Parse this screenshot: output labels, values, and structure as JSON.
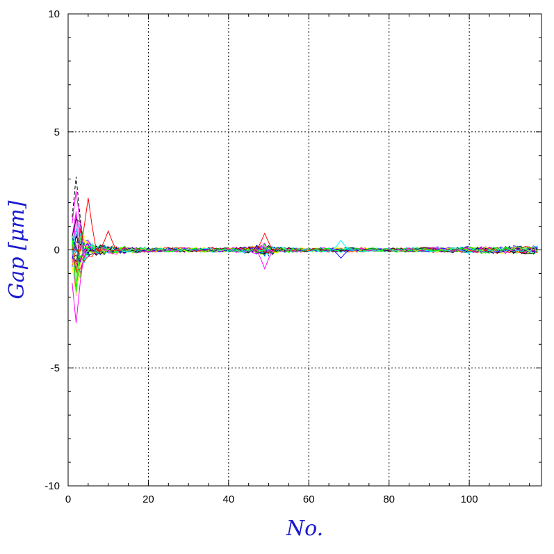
{
  "chart_data": {
    "type": "line",
    "title": "",
    "xlabel": "No.",
    "ylabel": "Gap [μm]",
    "xlim": [
      0,
      118
    ],
    "ylim": [
      -10,
      10
    ],
    "x_ticks": [
      0,
      20,
      40,
      60,
      80,
      100
    ],
    "x_tick_labels": [
      "0",
      "20",
      "40",
      "60",
      "80",
      "100"
    ],
    "y_ticks": [
      -10,
      -5,
      0,
      5,
      10
    ],
    "y_tick_labels": [
      "-10",
      "-5",
      "0",
      "5",
      "10"
    ],
    "grid": true,
    "legend": "none",
    "series_colors": [
      "#ff0000",
      "#ff00ff",
      "#00ffff",
      "#0000ff",
      "#00ff00",
      "#000000",
      "#ffff00"
    ],
    "series_count": 40,
    "x_start": 1,
    "x_end": 117,
    "noise_envelope": {
      "x": [
        1,
        2,
        3,
        4,
        6,
        10,
        20,
        40,
        46,
        49,
        52,
        60,
        68,
        80,
        100,
        117
      ],
      "amplitude": [
        0.9,
        2.2,
        1.4,
        0.8,
        0.35,
        0.22,
        0.12,
        0.12,
        0.18,
        0.35,
        0.15,
        0.1,
        0.12,
        0.1,
        0.16,
        0.2
      ]
    },
    "highlight_excursions": [
      {
        "color": "#000000",
        "x": 2,
        "y": 3.1
      },
      {
        "color": "#ff00ff",
        "x": 2,
        "y": -3.1
      },
      {
        "color": "#ff00ff",
        "x": 2,
        "y": 2.5
      },
      {
        "color": "#ff0000",
        "x": 5,
        "y": 2.2
      },
      {
        "color": "#ff0000",
        "x": 10,
        "y": 0.8
      },
      {
        "color": "#ff00ff",
        "x": 49,
        "y": -0.8
      },
      {
        "color": "#ff0000",
        "x": 49,
        "y": 0.7
      },
      {
        "color": "#0000ff",
        "x": 68,
        "y": -0.35
      },
      {
        "color": "#00ffff",
        "x": 68,
        "y": 0.4
      }
    ]
  }
}
